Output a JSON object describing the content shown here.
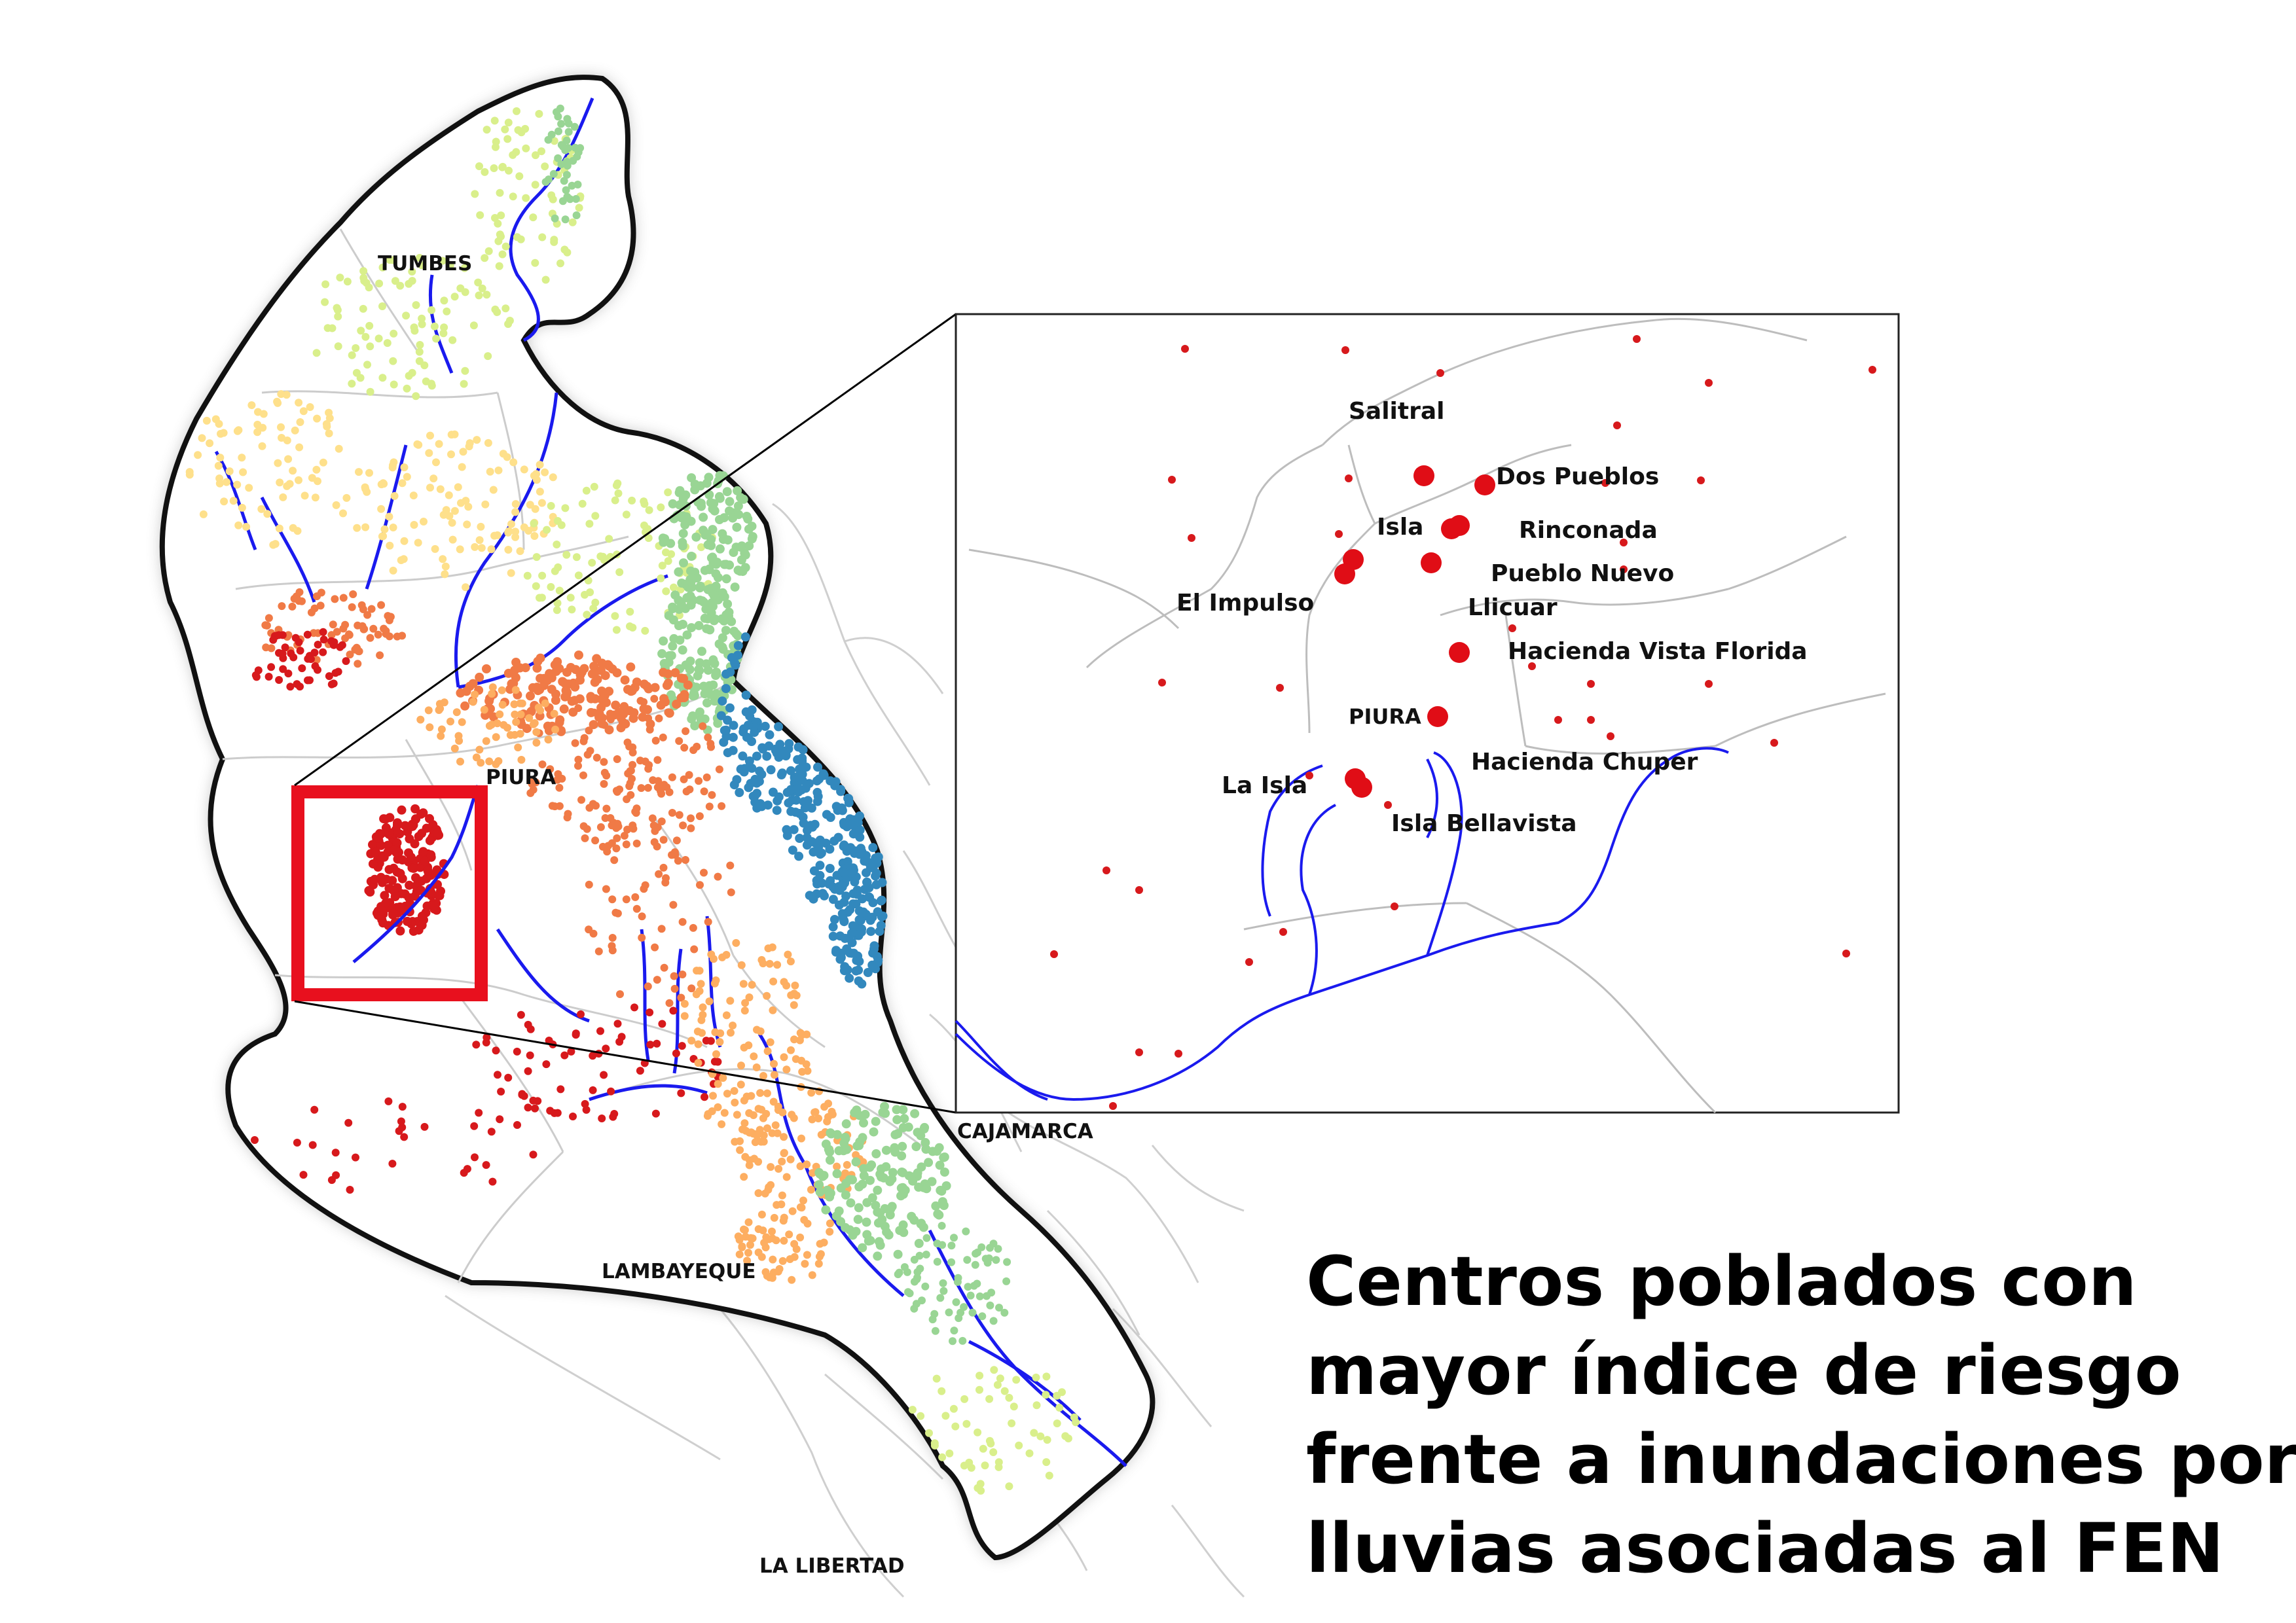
{
  "title_lines": [
    "Centros poblados con",
    "mayor índice de riesgo",
    "frente a inundaciones por",
    "lluvias asociadas al FEN"
  ],
  "regions": {
    "tumbes": "TUMBES",
    "piura": "PIURA",
    "cajamarca": "CAJAMARCA",
    "lambayeque": "LAMBAYEQUE",
    "la_libertad": "LA LIBERTAD"
  },
  "inset_places": {
    "salitral": "Salitral",
    "dos_pueblos": "Dos Pueblos",
    "isla": "Isla",
    "rinconada": "Rinconada",
    "pueblo_nuevo": "Pueblo Nuevo",
    "el_impulso": "El Impulso",
    "llicuar": "Llicuar",
    "hacienda_vista_florida": "Hacienda Vista Florida",
    "piura": "PIURA",
    "hacienda_chuper": "Hacienda Chuper",
    "la_isla": "La Isla",
    "isla_bellavista": "Isla Bellavista"
  },
  "colors": {
    "river": "#1a1aee",
    "boundary": "#c9c9c9",
    "outline": "#111111",
    "highlight_box": "#e8101e",
    "risk_very_high": "#d7191c",
    "risk_high": "#f07a46",
    "risk_medium_high": "#fdae61",
    "risk_medium": "#fee08b",
    "risk_low_medium": "#d9ef8b",
    "risk_low": "#99d594",
    "risk_very_low": "#3288bd"
  }
}
